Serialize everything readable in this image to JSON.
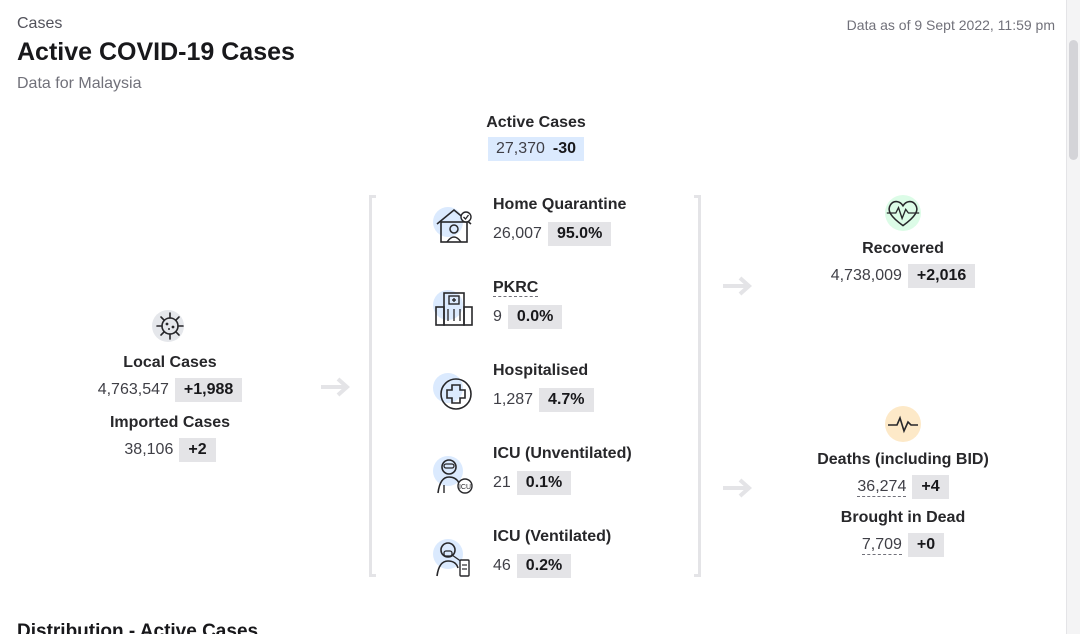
{
  "header": {
    "eyebrow": "Cases",
    "title": "Active COVID-19 Cases",
    "subtitle": "Data for Malaysia",
    "data_as_of": "Data as of 9 Sept 2022, 11:59 pm"
  },
  "active": {
    "label": "Active Cases",
    "value": "27,370",
    "change": "-30"
  },
  "inflow": {
    "local": {
      "label": "Local Cases",
      "value": "4,763,547",
      "change": "+1,988",
      "icon": "virus-icon"
    },
    "imported": {
      "label": "Imported Cases",
      "value": "38,106",
      "change": "+2"
    }
  },
  "categories": [
    {
      "label": "Home Quarantine",
      "value": "26,007",
      "pct": "95.0%",
      "icon": "home-quarantine-icon"
    },
    {
      "label": "PKRC",
      "value": "9",
      "pct": "0.0%",
      "icon": "building-icon"
    },
    {
      "label": "Hospitalised",
      "value": "1,287",
      "pct": "4.7%",
      "icon": "hospital-cross-icon"
    },
    {
      "label": "ICU (Unventilated)",
      "value": "21",
      "pct": "0.1%",
      "icon": "icu-patient-icon"
    },
    {
      "label": "ICU (Ventilated)",
      "value": "46",
      "pct": "0.2%",
      "icon": "ventilator-icon"
    }
  ],
  "outcomes": {
    "recovered": {
      "label": "Recovered",
      "value": "4,738,009",
      "change": "+2,016",
      "icon": "heart-pulse-icon",
      "color": "#dcfce7"
    },
    "deaths": {
      "label": "Deaths (including BID)",
      "value": "36,274",
      "change": "+4",
      "icon": "pulse-line-icon",
      "color": "#fde9c8"
    },
    "bid": {
      "label": "Brought in Dead",
      "value": "7,709",
      "change": "+0"
    }
  },
  "distribution_title": "Distribution - Active Cases"
}
